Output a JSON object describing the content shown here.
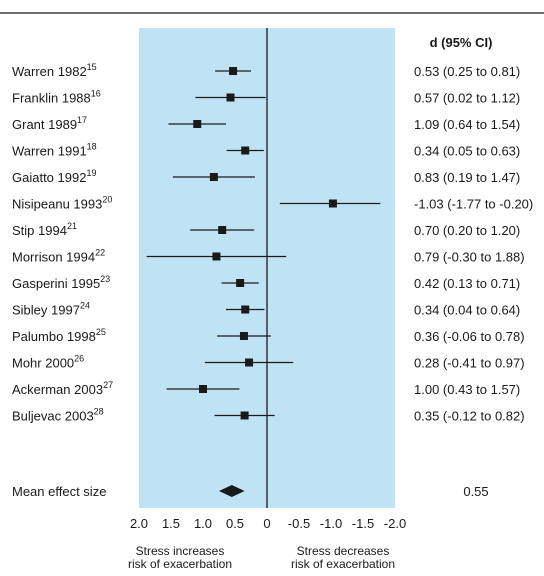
{
  "chart_data": {
    "type": "forest",
    "column_header": "d (95% CI)",
    "studies": [
      {
        "name": "Warren 1982",
        "ref": "15",
        "d": 0.53,
        "lo": 0.25,
        "hi": 0.81,
        "ci_text": "0.53 (0.25 to 0.81)"
      },
      {
        "name": "Franklin 1988",
        "ref": "16",
        "d": 0.57,
        "lo": 0.02,
        "hi": 1.12,
        "ci_text": "0.57 (0.02 to 1.12)"
      },
      {
        "name": "Grant 1989",
        "ref": "17",
        "d": 1.09,
        "lo": 0.64,
        "hi": 1.54,
        "ci_text": "1.09 (0.64 to 1.54)"
      },
      {
        "name": "Warren 1991",
        "ref": "18",
        "d": 0.34,
        "lo": 0.05,
        "hi": 0.63,
        "ci_text": "0.34 (0.05 to 0.63)"
      },
      {
        "name": "Gaiatto 1992",
        "ref": "19",
        "d": 0.83,
        "lo": 0.19,
        "hi": 1.47,
        "ci_text": "0.83 (0.19 to 1.47)"
      },
      {
        "name": "Nisipeanu 1993",
        "ref": "20",
        "d": -1.03,
        "lo": -1.77,
        "hi": -0.2,
        "ci_text": "-1.03 (-1.77 to -0.20)"
      },
      {
        "name": "Stip 1994",
        "ref": "21",
        "d": 0.7,
        "lo": 0.2,
        "hi": 1.2,
        "ci_text": "0.70 (0.20 to 1.20)"
      },
      {
        "name": "Morrison 1994",
        "ref": "22",
        "d": 0.79,
        "lo": -0.3,
        "hi": 1.88,
        "ci_text": "0.79 (-0.30 to 1.88)"
      },
      {
        "name": "Gasperini 1995",
        "ref": "23",
        "d": 0.42,
        "lo": 0.13,
        "hi": 0.71,
        "ci_text": "0.42 (0.13 to 0.71)"
      },
      {
        "name": "Sibley 1997",
        "ref": "24",
        "d": 0.34,
        "lo": 0.04,
        "hi": 0.64,
        "ci_text": "0.34 (0.04 to 0.64)"
      },
      {
        "name": "Palumbo 1998",
        "ref": "25",
        "d": 0.36,
        "lo": -0.06,
        "hi": 0.78,
        "ci_text": "0.36 (-0.06 to 0.78)"
      },
      {
        "name": "Mohr 2000",
        "ref": "26",
        "d": 0.28,
        "lo": -0.41,
        "hi": 0.97,
        "ci_text": "0.28 (-0.41 to 0.97)"
      },
      {
        "name": "Ackerman 2003",
        "ref": "27",
        "d": 1.0,
        "lo": 0.43,
        "hi": 1.57,
        "ci_text": "1.00 (0.43 to 1.57)"
      },
      {
        "name": "Buljevac 2003",
        "ref": "28",
        "d": 0.35,
        "lo": -0.12,
        "hi": 0.82,
        "ci_text": "0.35 (-0.12 to 0.82)"
      }
    ],
    "summary": {
      "label": "Mean effect size",
      "d": 0.55,
      "lo": 0.35,
      "hi": 0.75,
      "value_text": "0.55"
    },
    "x_axis": {
      "reversed": true,
      "range": [
        2.0,
        -2.0
      ],
      "ticks": [
        2.0,
        1.5,
        1.0,
        0.5,
        0,
        -0.5,
        -1.0,
        -1.5,
        -2.0
      ],
      "tick_labels": [
        "2.0",
        "1.5",
        "1.0",
        "0.5",
        "0",
        "-0.5",
        "-1.0",
        "-1.5",
        "-2.0"
      ]
    },
    "direction_labels": {
      "left": [
        "Stress increases",
        "risk of exacerbation"
      ],
      "right": [
        "Stress decreases",
        "risk of exacerbation"
      ]
    },
    "colors": {
      "panel": "#bfe3f4",
      "marker": "#1a1a1a",
      "rule": "#1a1a1a"
    }
  }
}
